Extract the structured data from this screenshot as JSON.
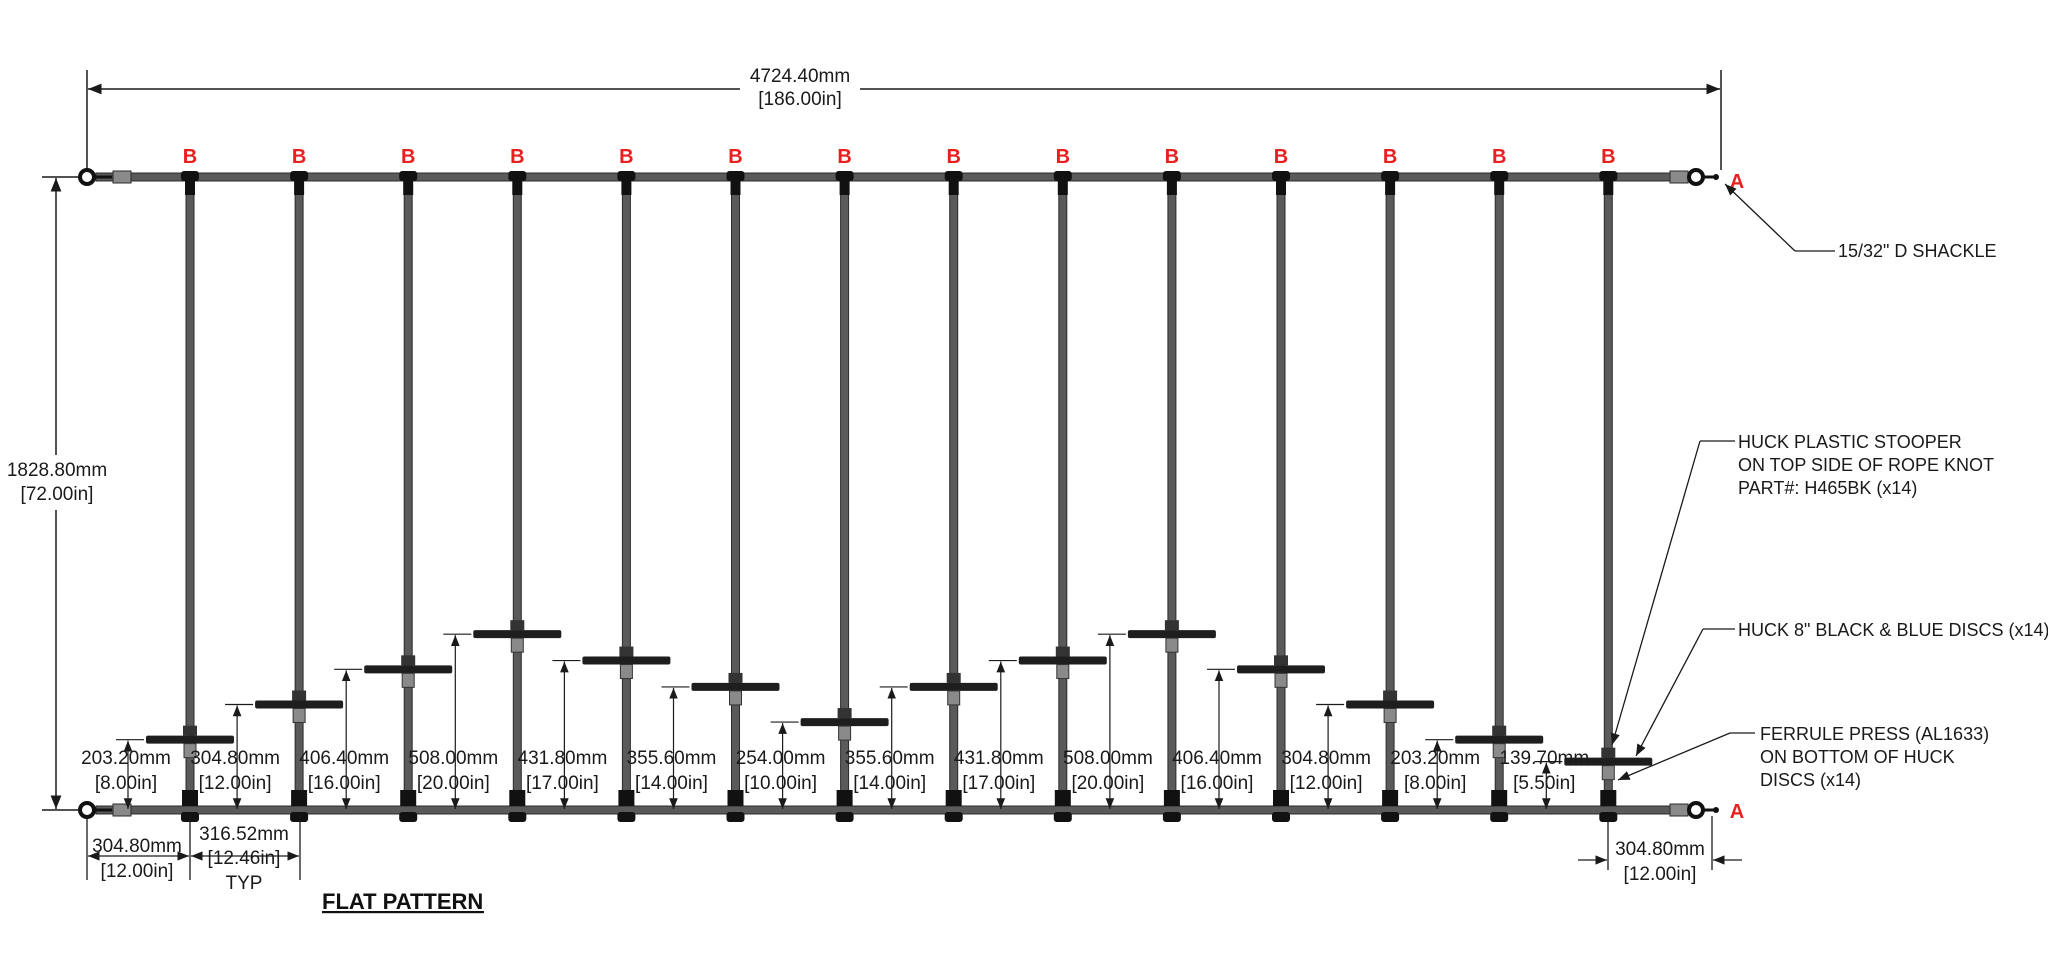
{
  "title": "FLAT PATTERN",
  "overall": {
    "width_mm": "4724.40mm",
    "width_in": "[186.00in]",
    "height_mm": "1828.80mm",
    "height_in": "[72.00in]"
  },
  "markers": {
    "top_label": "B",
    "side_label": "A"
  },
  "callouts": {
    "shackle": "15/32\" D SHACKLE",
    "stooper": [
      "HUCK PLASTIC STOOPER",
      "ON TOP SIDE OF ROPE KNOT",
      "PART#: H465BK (x14)"
    ],
    "discs": "HUCK 8\" BLACK & BLUE DISCS (x14)",
    "ferrule": [
      "FERRULE PRESS (AL1633)",
      "ON BOTTOM OF HUCK",
      "DISCS (x14)"
    ]
  },
  "bottom_dims": {
    "left_offset_mm": "304.80mm",
    "left_offset_in": "[12.00in]",
    "spacing_mm": "316.52mm",
    "spacing_in": "[12.46in]",
    "spacing_note": "TYP",
    "right_offset_mm": "304.80mm",
    "right_offset_in": "[12.00in]"
  },
  "drops": [
    {
      "mm": "203.20mm",
      "in": "[8.00in]",
      "value_in": 8.0
    },
    {
      "mm": "304.80mm",
      "in": "[12.00in]",
      "value_in": 12.0
    },
    {
      "mm": "406.40mm",
      "in": "[16.00in]",
      "value_in": 16.0
    },
    {
      "mm": "508.00mm",
      "in": "[20.00in]",
      "value_in": 20.0
    },
    {
      "mm": "431.80mm",
      "in": "[17.00in]",
      "value_in": 17.0
    },
    {
      "mm": "355.60mm",
      "in": "[14.00in]",
      "value_in": 14.0
    },
    {
      "mm": "254.00mm",
      "in": "[10.00in]",
      "value_in": 10.0
    },
    {
      "mm": "355.60mm",
      "in": "[14.00in]",
      "value_in": 14.0
    },
    {
      "mm": "431.80mm",
      "in": "[17.00in]",
      "value_in": 17.0
    },
    {
      "mm": "508.00mm",
      "in": "[20.00in]",
      "value_in": 20.0
    },
    {
      "mm": "406.40mm",
      "in": "[16.00in]",
      "value_in": 16.0
    },
    {
      "mm": "304.80mm",
      "in": "[12.00in]",
      "value_in": 12.0
    },
    {
      "mm": "203.20mm",
      "in": "[8.00in]",
      "value_in": 8.0
    },
    {
      "mm": "139.70mm",
      "in": "[5.50in]",
      "value_in": 5.5
    }
  ],
  "colors": {
    "rope": "#5a5a5a",
    "rope_edge": "#2b2b2b",
    "disc": "#1e1e1e",
    "ferrule": "#8a8a8a",
    "marker": "#e8201f",
    "line": "#1a1a1a"
  }
}
